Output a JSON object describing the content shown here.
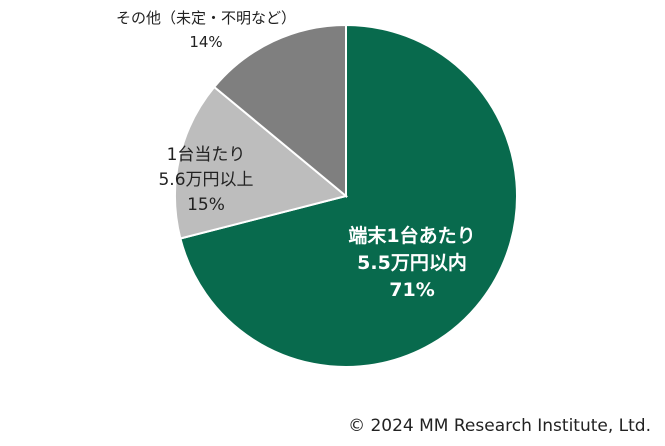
{
  "chart_data": {
    "type": "pie",
    "title": "",
    "slices": [
      {
        "label_lines": [
          "端末1台あたり",
          "5.5万円以内"
        ],
        "percent_label": "71%",
        "value": 71,
        "color": "#086a4d"
      },
      {
        "label_lines": [
          "1台当たり",
          "5.6万円以上"
        ],
        "percent_label": "15%",
        "value": 15,
        "color": "#bdbdbd"
      },
      {
        "label_lines": [
          "その他（未定・不明など）"
        ],
        "percent_label": "14%",
        "value": 14,
        "color": "#7f7f7f"
      }
    ],
    "start": "12 o'clock",
    "direction": "clockwise",
    "legend": "none"
  },
  "footer": {
    "copyright": "© 2024 MM Research Institute, Ltd."
  }
}
